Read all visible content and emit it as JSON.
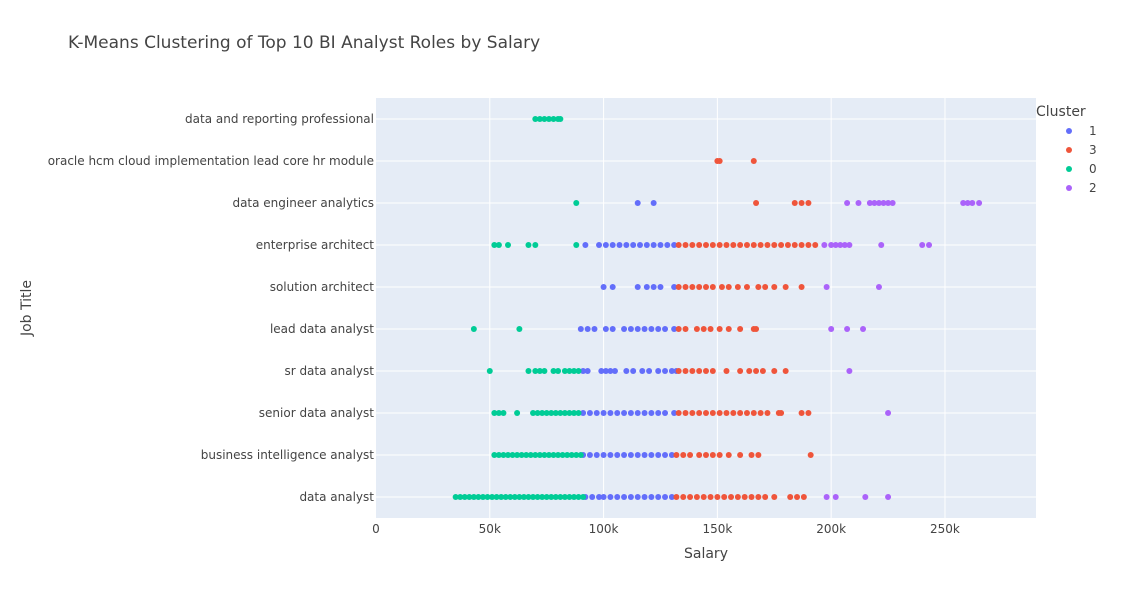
{
  "chart_data": {
    "type": "scatter",
    "title": "K-Means Clustering of Top 10 BI Analyst Roles by Salary",
    "xlabel": "Salary",
    "ylabel": "Job Title",
    "xlim": [
      0,
      290000
    ],
    "x_ticks": [
      {
        "value": 0,
        "label": "0"
      },
      {
        "value": 50000,
        "label": "50k"
      },
      {
        "value": 100000,
        "label": "100k"
      },
      {
        "value": 150000,
        "label": "150k"
      },
      {
        "value": 200000,
        "label": "200k"
      },
      {
        "value": 250000,
        "label": "250k"
      }
    ],
    "categories": [
      "data analyst",
      "business intelligence analyst",
      "senior data analyst",
      "sr data analyst",
      "lead data analyst",
      "solution architect",
      "enterprise architect",
      "data engineer analytics",
      "oracle hcm cloud implementation lead core hr module",
      "data and reporting professional"
    ],
    "grid": true,
    "legend": {
      "title": "Cluster",
      "placement": "right"
    },
    "series": [
      {
        "name": "1",
        "color": "#636efa",
        "points": [
          {
            "y": "data analyst",
            "x": [
              92000,
              95000,
              98000,
              100000,
              103000,
              106000,
              109000,
              112000,
              115000,
              118000,
              121000,
              124000,
              127000,
              130000
            ]
          },
          {
            "y": "business intelligence analyst",
            "x": [
              91000,
              94000,
              97000,
              100000,
              103000,
              106000,
              109000,
              112000,
              115000,
              118000,
              121000,
              124000,
              127000,
              130000
            ]
          },
          {
            "y": "senior data analyst",
            "x": [
              91000,
              94000,
              97000,
              100000,
              103000,
              106000,
              109000,
              112000,
              115000,
              118000,
              121000,
              124000,
              127000,
              131000
            ]
          },
          {
            "y": "sr data analyst",
            "x": [
              91000,
              93000,
              99000,
              101000,
              103000,
              105000,
              110000,
              113000,
              117000,
              120000,
              124000,
              127000,
              130000,
              132000
            ]
          },
          {
            "y": "lead data analyst",
            "x": [
              90000,
              93000,
              96000,
              101000,
              104000,
              109000,
              112000,
              115000,
              118000,
              121000,
              124000,
              127000,
              131000
            ]
          },
          {
            "y": "solution architect",
            "x": [
              100000,
              104000,
              115000,
              119000,
              122000,
              125000,
              131000
            ]
          },
          {
            "y": "enterprise architect",
            "x": [
              92000,
              98000,
              101000,
              104000,
              107000,
              110000,
              113000,
              116000,
              119000,
              122000,
              125000,
              128000,
              131000
            ]
          },
          {
            "y": "data engineer analytics",
            "x": [
              115000,
              122000
            ]
          }
        ]
      },
      {
        "name": "3",
        "color": "#ef553b",
        "points": [
          {
            "y": "data analyst",
            "x": [
              132000,
              135000,
              138000,
              141000,
              144000,
              147000,
              150000,
              153000,
              156000,
              159000,
              162000,
              165000,
              168000,
              171000,
              175000,
              182000,
              185000,
              188000
            ]
          },
          {
            "y": "business intelligence analyst",
            "x": [
              132000,
              135000,
              138000,
              142000,
              145000,
              148000,
              151000,
              155000,
              160000,
              165000,
              168000,
              191000
            ]
          },
          {
            "y": "senior data analyst",
            "x": [
              133000,
              136000,
              139000,
              142000,
              145000,
              148000,
              151000,
              154000,
              157000,
              160000,
              163000,
              166000,
              169000,
              172000,
              177000,
              178000,
              187000,
              190000
            ]
          },
          {
            "y": "sr data analyst",
            "x": [
              133000,
              136000,
              139000,
              142000,
              145000,
              148000,
              154000,
              160000,
              164000,
              167000,
              170000,
              175000,
              180000
            ]
          },
          {
            "y": "lead data analyst",
            "x": [
              133000,
              136000,
              141000,
              144000,
              147000,
              151000,
              155000,
              160000,
              166000,
              167000
            ]
          },
          {
            "y": "solution architect",
            "x": [
              133000,
              136000,
              139000,
              142000,
              145000,
              148000,
              152000,
              155000,
              159000,
              163000,
              168000,
              171000,
              175000,
              180000,
              187000
            ]
          },
          {
            "y": "enterprise architect",
            "x": [
              133000,
              136000,
              139000,
              142000,
              145000,
              148000,
              151000,
              154000,
              157000,
              160000,
              163000,
              166000,
              169000,
              172000,
              175000,
              178000,
              181000,
              184000,
              187000,
              190000,
              193000
            ]
          },
          {
            "y": "data engineer analytics",
            "x": [
              167000,
              184000,
              187000,
              190000
            ]
          },
          {
            "y": "oracle hcm cloud implementation lead core hr module",
            "x": [
              150000,
              151000,
              166000
            ]
          }
        ]
      },
      {
        "name": "0",
        "color": "#00cc96",
        "points": [
          {
            "y": "data analyst",
            "x": [
              35000,
              37000,
              39000,
              41000,
              43000,
              45000,
              47000,
              49000,
              51000,
              53000,
              55000,
              57000,
              59000,
              61000,
              63000,
              65000,
              67000,
              69000,
              71000,
              73000,
              75000,
              77000,
              79000,
              81000,
              83000,
              85000,
              87000,
              89000,
              91000
            ]
          },
          {
            "y": "business intelligence analyst",
            "x": [
              52000,
              54000,
              56000,
              58000,
              60000,
              62000,
              64000,
              66000,
              68000,
              70000,
              72000,
              74000,
              76000,
              78000,
              80000,
              82000,
              84000,
              86000,
              88000,
              90000
            ]
          },
          {
            "y": "senior data analyst",
            "x": [
              52000,
              54000,
              56000,
              62000,
              69000,
              71000,
              73000,
              75000,
              77000,
              79000,
              81000,
              83000,
              85000,
              87000,
              89000
            ]
          },
          {
            "y": "sr data analyst",
            "x": [
              50000,
              67000,
              70000,
              72000,
              74000,
              78000,
              80000,
              83000,
              85000,
              87000,
              89000
            ]
          },
          {
            "y": "lead data analyst",
            "x": [
              43000,
              63000
            ]
          },
          {
            "y": "enterprise architect",
            "x": [
              52000,
              54000,
              58000,
              67000,
              70000,
              88000
            ]
          },
          {
            "y": "data engineer analytics",
            "x": [
              88000
            ]
          },
          {
            "y": "data and reporting professional",
            "x": [
              70000,
              72000,
              74000,
              76000,
              78000,
              80000,
              81000
            ]
          }
        ]
      },
      {
        "name": "2",
        "color": "#ab63fa",
        "points": [
          {
            "y": "data analyst",
            "x": [
              198000,
              202000,
              215000,
              225000
            ]
          },
          {
            "y": "senior data analyst",
            "x": [
              225000
            ]
          },
          {
            "y": "sr data analyst",
            "x": [
              208000
            ]
          },
          {
            "y": "lead data analyst",
            "x": [
              200000,
              207000,
              214000
            ]
          },
          {
            "y": "solution architect",
            "x": [
              198000,
              221000
            ]
          },
          {
            "y": "enterprise architect",
            "x": [
              197000,
              200000,
              202000,
              204000,
              206000,
              208000,
              222000,
              240000,
              243000
            ]
          },
          {
            "y": "data engineer analytics",
            "x": [
              207000,
              212000,
              217000,
              219000,
              221000,
              223000,
              225000,
              227000,
              258000,
              260000,
              262000,
              265000
            ]
          }
        ]
      }
    ]
  }
}
